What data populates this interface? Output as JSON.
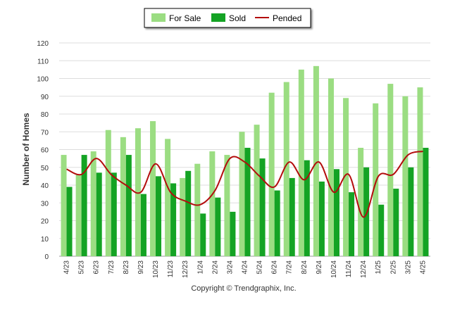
{
  "chart_data": {
    "type": "bar",
    "categories": [
      "4/23",
      "5/23",
      "6/23",
      "7/23",
      "8/23",
      "9/23",
      "10/23",
      "11/23",
      "12/23",
      "1/24",
      "2/24",
      "3/24",
      "4/24",
      "5/24",
      "6/24",
      "7/24",
      "8/24",
      "9/24",
      "10/24",
      "11/24",
      "12/24",
      "1/25",
      "2/25",
      "3/25",
      "4/25"
    ],
    "series": [
      {
        "name": "For Sale",
        "kind": "bar",
        "color": "#9bdd82",
        "values": [
          57,
          46,
          59,
          71,
          67,
          72,
          76,
          66,
          44,
          52,
          59,
          57,
          70,
          74,
          92,
          98,
          105,
          107,
          100,
          89,
          61,
          86,
          97,
          90,
          95
        ]
      },
      {
        "name": "Sold",
        "kind": "bar",
        "color": "#14a324",
        "values": [
          39,
          57,
          47,
          47,
          57,
          35,
          45,
          41,
          48,
          24,
          33,
          25,
          61,
          55,
          37,
          44,
          54,
          42,
          49,
          36,
          50,
          29,
          38,
          50,
          61
        ]
      },
      {
        "name": "Pended",
        "kind": "line",
        "color": "#b30d0d",
        "values": [
          49,
          46,
          55,
          46,
          40,
          36,
          52,
          36,
          31,
          29,
          37,
          55,
          53,
          45,
          39,
          53,
          43,
          53,
          36,
          46,
          22,
          45,
          46,
          57,
          59
        ]
      }
    ],
    "ylabel": "Number of Homes",
    "xlabel": "",
    "ylim": [
      0,
      120
    ],
    "yticks": [
      0,
      10,
      20,
      30,
      40,
      50,
      60,
      70,
      80,
      90,
      100,
      110,
      120
    ],
    "grid": true,
    "legend_position": "top-center"
  },
  "footer": {
    "copyright": "Copyright © Trendgraphix, Inc."
  }
}
